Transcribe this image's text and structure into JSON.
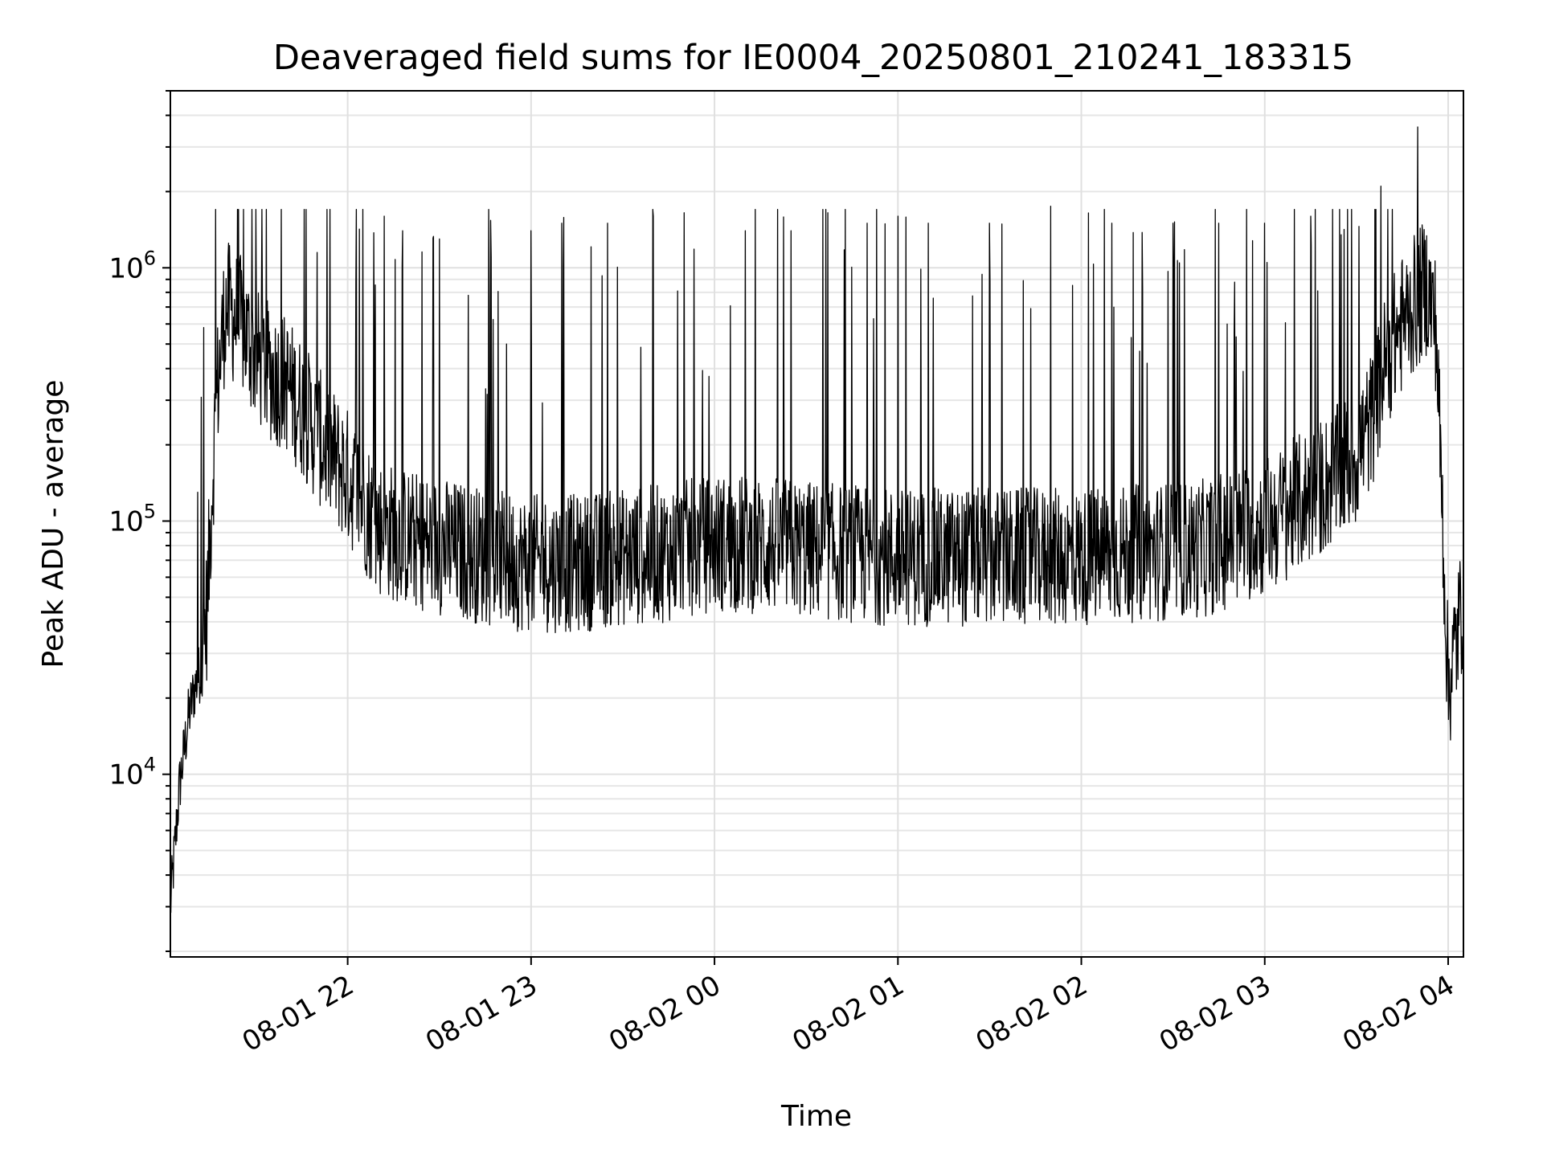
{
  "chart_data": {
    "type": "line",
    "title": "Deaveraged field sums for IE0004_20250801_210241_183315",
    "xlabel": "Time",
    "ylabel": "Peak ADU - average",
    "x_scale": "time",
    "y_scale": "log",
    "xlim": [
      "2025-08-01 21:02",
      "2025-08-02 04:05"
    ],
    "ylim": [
      1900,
      5000000
    ],
    "grid": true,
    "x_ticks": [
      {
        "value": "2025-08-01 22:00",
        "label": "08-01 22"
      },
      {
        "value": "2025-08-01 23:00",
        "label": "08-01 23"
      },
      {
        "value": "2025-08-02 00:00",
        "label": "08-02 00"
      },
      {
        "value": "2025-08-02 01:00",
        "label": "08-02 01"
      },
      {
        "value": "2025-08-02 02:00",
        "label": "08-02 02"
      },
      {
        "value": "2025-08-02 03:00",
        "label": "08-02 03"
      },
      {
        "value": "2025-08-02 04:00",
        "label": "08-02 04"
      }
    ],
    "y_ticks": [
      {
        "value": 10000,
        "base": "10",
        "exp": "4"
      },
      {
        "value": 100000,
        "base": "10",
        "exp": "5"
      },
      {
        "value": 1000000,
        "base": "10",
        "exp": "6"
      }
    ],
    "series": [
      {
        "color": "#000000",
        "x": [
          "2025-08-01 21:02",
          "2025-08-01 21:05",
          "2025-08-01 21:08",
          "2025-08-01 21:10",
          "2025-08-01 21:12",
          "2025-08-01 21:14",
          "2025-08-01 21:15",
          "2025-08-01 21:17",
          "2025-08-01 21:20",
          "2025-08-01 21:25",
          "2025-08-01 21:30",
          "2025-08-01 21:35",
          "2025-08-01 21:40",
          "2025-08-01 21:45",
          "2025-08-01 21:50",
          "2025-08-01 21:55",
          "2025-08-01 22:00",
          "2025-08-01 22:05",
          "2025-08-01 22:10",
          "2025-08-01 22:20",
          "2025-08-01 22:30",
          "2025-08-01 22:40",
          "2025-08-01 22:50",
          "2025-08-01 23:00",
          "2025-08-01 23:15",
          "2025-08-01 23:30",
          "2025-08-01 23:45",
          "2025-08-02 00:00",
          "2025-08-02 00:20",
          "2025-08-02 00:40",
          "2025-08-02 01:00",
          "2025-08-02 01:20",
          "2025-08-02 01:40",
          "2025-08-02 02:00",
          "2025-08-02 02:20",
          "2025-08-02 02:40",
          "2025-08-02 03:00",
          "2025-08-02 03:10",
          "2025-08-02 03:20",
          "2025-08-02 03:30",
          "2025-08-02 03:35",
          "2025-08-02 03:40",
          "2025-08-02 03:45",
          "2025-08-02 03:50",
          "2025-08-02 03:53",
          "2025-08-02 03:56",
          "2025-08-02 03:58",
          "2025-08-02 04:00",
          "2025-08-02 04:02",
          "2025-08-02 04:05"
        ],
        "y": [
          3000,
          9000,
          17000,
          22000,
          26000,
          45000,
          90000,
          300000,
          700000,
          600000,
          450000,
          380000,
          350000,
          280000,
          220000,
          180000,
          150000,
          120000,
          95000,
          85000,
          80000,
          75000,
          70000,
          68000,
          68000,
          72000,
          75000,
          82000,
          80000,
          75000,
          72000,
          72000,
          72000,
          72000,
          75000,
          78000,
          95000,
          115000,
          140000,
          180000,
          250000,
          450000,
          600000,
          750000,
          850000,
          600000,
          120000,
          22000,
          30000,
          50000
        ],
        "spikes": [
          {
            "x": "2025-08-01 21:11",
            "y": 130000
          },
          {
            "x": "2025-08-01 21:50",
            "y": 1150000
          },
          {
            "x": "2025-08-01 22:05",
            "y": 1700000
          },
          {
            "x": "2025-08-01 22:12",
            "y": 1600000
          },
          {
            "x": "2025-08-01 22:18",
            "y": 1400000
          },
          {
            "x": "2025-08-01 22:30",
            "y": 1300000
          },
          {
            "x": "2025-08-01 22:52",
            "y": 500000
          },
          {
            "x": "2025-08-01 23:00",
            "y": 1400000
          },
          {
            "x": "2025-08-01 23:10",
            "y": 1500000
          },
          {
            "x": "2025-08-01 23:25",
            "y": 1500000
          },
          {
            "x": "2025-08-01 23:40",
            "y": 1600000
          },
          {
            "x": "2025-08-01 23:50",
            "y": 1650000
          },
          {
            "x": "2025-08-02 00:10",
            "y": 1400000
          },
          {
            "x": "2025-08-02 00:25",
            "y": 1400000
          },
          {
            "x": "2025-08-02 00:37",
            "y": 1650000
          },
          {
            "x": "2025-08-02 00:50",
            "y": 1500000
          },
          {
            "x": "2025-08-02 01:00",
            "y": 1600000
          },
          {
            "x": "2025-08-02 01:10",
            "y": 1500000
          },
          {
            "x": "2025-08-02 01:30",
            "y": 1500000
          },
          {
            "x": "2025-08-02 01:50",
            "y": 1750000
          },
          {
            "x": "2025-08-02 02:10",
            "y": 1500000
          },
          {
            "x": "2025-08-02 02:30",
            "y": 1500000
          },
          {
            "x": "2025-08-02 02:45",
            "y": 1500000
          },
          {
            "x": "2025-08-02 03:00",
            "y": 1500000
          },
          {
            "x": "2025-08-02 03:15",
            "y": 1600000
          },
          {
            "x": "2025-08-02 03:25",
            "y": 1350000
          },
          {
            "x": "2025-08-02 03:38",
            "y": 2100000
          },
          {
            "x": "2025-08-02 03:50",
            "y": 3600000
          }
        ]
      }
    ]
  }
}
